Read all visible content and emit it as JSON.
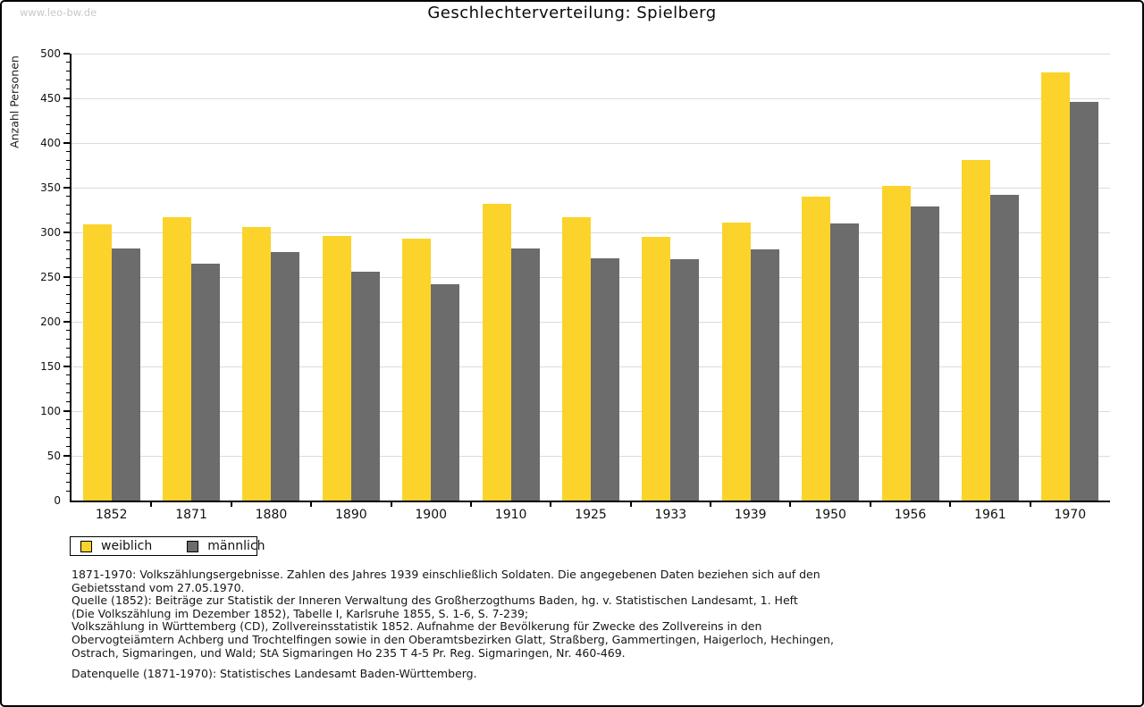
{
  "watermark": "www.leo-bw.de",
  "title": "Geschlechterverteilung: Spielberg",
  "chart_data": {
    "type": "bar",
    "title": "Geschlechterverteilung: Spielberg",
    "xlabel": "",
    "ylabel": "Anzahl Personen",
    "ylim": [
      0,
      500
    ],
    "ytick_step": 50,
    "minor_tick_step": 10,
    "grid": true,
    "legend_position": "bottom-left",
    "categories": [
      "1852",
      "1871",
      "1880",
      "1890",
      "1900",
      "1910",
      "1925",
      "1933",
      "1939",
      "1950",
      "1956",
      "1961",
      "1970"
    ],
    "series": [
      {
        "name": "weiblich",
        "color": "#FCD32B",
        "values": [
          309,
          317,
          306,
          296,
          293,
          332,
          317,
          295,
          311,
          340,
          352,
          381,
          479
        ]
      },
      {
        "name": "männlich",
        "color": "#6C6C6C",
        "values": [
          282,
          265,
          278,
          256,
          242,
          282,
          271,
          270,
          281,
          310,
          329,
          342,
          446
        ]
      }
    ]
  },
  "colors": {
    "grid": "#DBDBDB",
    "axis": "#000000",
    "watermark": "#C9C9C9",
    "background": "#FFFFFF"
  },
  "footnotes": {
    "lines": [
      "1871-1970: Volkszählungsergebnisse. Zahlen des Jahres 1939 einschließlich Soldaten. Die angegebenen Daten beziehen sich auf den",
      "Gebietsstand vom 27.05.1970.",
      "Quelle (1852): Beiträge zur Statistik der Inneren Verwaltung des Großherzogthums Baden, hg. v. Statistischen Landesamt, 1. Heft",
      "(Die Volkszählung im Dezember 1852), Tabelle I, Karlsruhe 1855, S. 1-6, S. 7-239;",
      "Volkszählung in Württemberg (CD), Zollvereinsstatistik 1852. Aufnahme der Bevölkerung für Zwecke des Zollvereins in den",
      "Obervogteiämtern Achberg und Trochtelfingen sowie in den Oberamtsbezirken Glatt, Straßberg, Gammertingen, Haigerloch, Hechingen,",
      "Ostrach, Sigmaringen, und Wald; StA Sigmaringen Ho 235 T 4-5 Pr. Reg. Sigmaringen, Nr. 460-469."
    ],
    "datasource": "Datenquelle (1871-1970): Statistisches Landesamt Baden-Württemberg."
  }
}
